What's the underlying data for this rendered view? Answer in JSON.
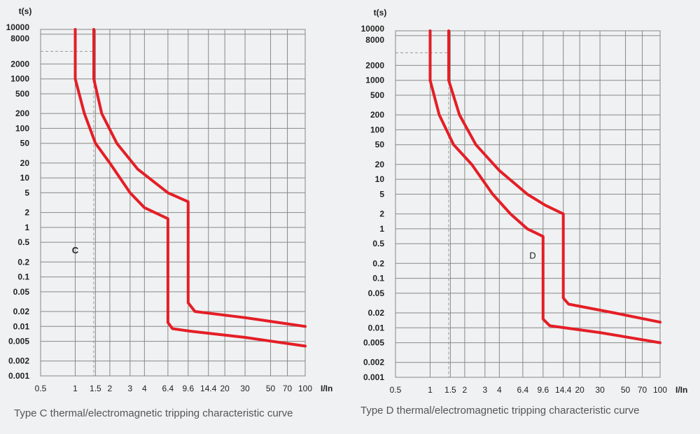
{
  "chart_data": [
    {
      "type": "line",
      "title": "",
      "curve_label": "C",
      "xlabel": "I/In",
      "ylabel": "t(s)",
      "x_scale": "log",
      "y_scale": "log",
      "xlim": [
        0.5,
        100
      ],
      "ylim": [
        0.001,
        10000
      ],
      "x_ticks": [
        0.5,
        1,
        1.5,
        2,
        3,
        4,
        6.4,
        9.6,
        14.4,
        20,
        30,
        50,
        70,
        100
      ],
      "x_tick_labels": [
        "0.5",
        "1",
        "1.5",
        "2",
        "3",
        "4",
        "6.4",
        "9.6",
        "14.4",
        "20",
        "30",
        "50",
        "70",
        "100"
      ],
      "y_ticks": [
        0.001,
        0.002,
        0.005,
        0.01,
        0.02,
        0.05,
        0.1,
        0.2,
        0.5,
        1,
        2,
        5,
        10,
        20,
        50,
        100,
        200,
        500,
        1000,
        2000,
        8000,
        10000
      ],
      "y_tick_labels": [
        "0.001",
        "0.002",
        "0.005",
        "0.01",
        "0.02",
        "0.05",
        "0.1",
        "0.2",
        "0.5",
        "1",
        "2",
        "5",
        "10",
        "20",
        "50",
        "100",
        "200",
        "500",
        "1000",
        "2000",
        "8000",
        "10000"
      ],
      "grid": true,
      "reference_lines": {
        "vertical_x": 1.45,
        "horizontal_y": 3600
      },
      "series": [
        {
          "points": [
            [
              1,
              10000
            ],
            [
              1,
              1000
            ],
            [
              1.2,
              200
            ],
            [
              1.5,
              50
            ],
            [
              2,
              20
            ],
            [
              3,
              5
            ],
            [
              4,
              2.5
            ],
            [
              6.4,
              1.5
            ],
            [
              6.4,
              0.012
            ],
            [
              7,
              0.009
            ],
            [
              10,
              0.008
            ],
            [
              30,
              0.006
            ],
            [
              100,
              0.004
            ]
          ]
        },
        {
          "points": [
            [
              1.45,
              10000
            ],
            [
              1.45,
              1000
            ],
            [
              1.7,
              200
            ],
            [
              2.3,
              50
            ],
            [
              3.5,
              15
            ],
            [
              6.4,
              5
            ],
            [
              9.6,
              3.3
            ],
            [
              9.6,
              0.03
            ],
            [
              11,
              0.02
            ],
            [
              30,
              0.015
            ],
            [
              100,
              0.01
            ]
          ]
        }
      ],
      "color": "#e41e26"
    },
    {
      "type": "line",
      "title": "",
      "curve_label": "D",
      "xlabel": "I/In",
      "ylabel": "t(s)",
      "x_scale": "log",
      "y_scale": "log",
      "xlim": [
        0.5,
        100
      ],
      "ylim": [
        0.001,
        10000
      ],
      "x_ticks": [
        0.5,
        1,
        1.5,
        2,
        3,
        4,
        6.4,
        9.6,
        14.4,
        20,
        30,
        50,
        70,
        100
      ],
      "x_tick_labels": [
        "0.5",
        "1",
        "1.5",
        "2",
        "3",
        "4",
        "6.4",
        "9.6",
        "14.4",
        "20",
        "30",
        "50",
        "70",
        "100"
      ],
      "y_ticks": [
        0.001,
        0.002,
        0.005,
        0.01,
        0.02,
        0.05,
        0.1,
        0.2,
        0.5,
        1,
        2,
        5,
        10,
        20,
        50,
        100,
        200,
        500,
        1000,
        2000,
        8000,
        10000
      ],
      "y_tick_labels": [
        "0.001",
        "0.002",
        "0.005",
        "0.01",
        "0.02",
        "0.05",
        "0.1",
        "0.2",
        "0.5",
        "1",
        "2",
        "5",
        "10",
        "20",
        "50",
        "100",
        "200",
        "500",
        "1000",
        "2000",
        "8000",
        "10000"
      ],
      "grid": true,
      "reference_lines": {
        "vertical_x": 1.45,
        "horizontal_y": 3600
      },
      "series": [
        {
          "points": [
            [
              1,
              10000
            ],
            [
              1,
              1000
            ],
            [
              1.2,
              200
            ],
            [
              1.6,
              50
            ],
            [
              2.3,
              20
            ],
            [
              3.5,
              5
            ],
            [
              5,
              2
            ],
            [
              7,
              1
            ],
            [
              9.6,
              0.7
            ],
            [
              9.6,
              0.015
            ],
            [
              11,
              0.011
            ],
            [
              30,
              0.008
            ],
            [
              100,
              0.005
            ]
          ]
        },
        {
          "points": [
            [
              1.45,
              10000
            ],
            [
              1.45,
              1000
            ],
            [
              1.8,
              200
            ],
            [
              2.5,
              50
            ],
            [
              4,
              15
            ],
            [
              7,
              5
            ],
            [
              10,
              3
            ],
            [
              14.4,
              2
            ],
            [
              14.4,
              0.04
            ],
            [
              16,
              0.03
            ],
            [
              40,
              0.02
            ],
            [
              100,
              0.013
            ]
          ]
        }
      ],
      "color": "#e41e26"
    }
  ],
  "captions": {
    "c": "Type C thermal/electromagnetic tripping characteristic curve",
    "d": "Type D thermal/electromagnetic tripping characteristic curve"
  }
}
